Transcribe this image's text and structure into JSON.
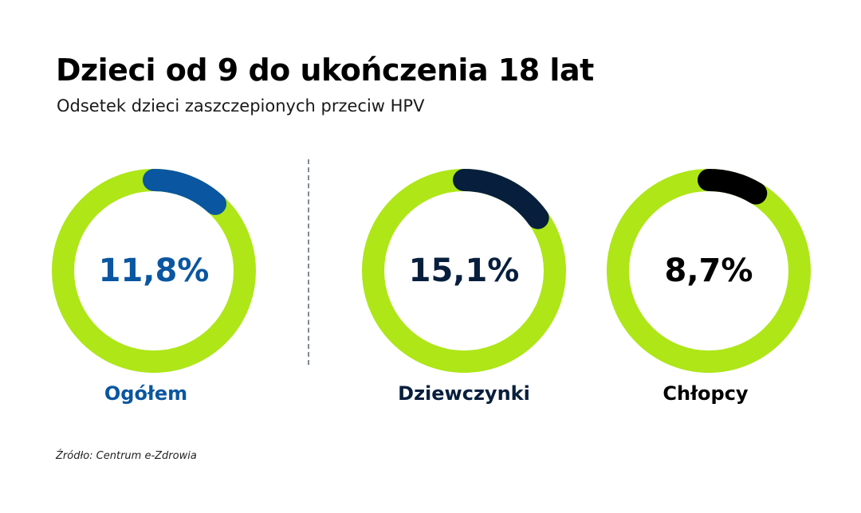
{
  "title": "Dzieci od 9 do ukończenia 18 lat",
  "subtitle": "Odsetek dzieci zaszczepionych przeciw HPV",
  "source": "Źródło: Centrum e-Zdrowia",
  "colors": {
    "ring": "#aee618",
    "total": "#0a56a0",
    "girls": "#071f3d",
    "boys": "#000000"
  },
  "chart_data": {
    "type": "pie",
    "title": "Dzieci od 9 do ukończenia 18 lat",
    "subtitle": "Odsetek dzieci zaszczepionych przeciw HPV",
    "categories": [
      "Ogółem",
      "Dziewczynki",
      "Chłopcy"
    ],
    "values": [
      11.8,
      15.1,
      8.7
    ],
    "value_labels": [
      "11,8%",
      "15,1%",
      "8,7%"
    ],
    "unit": "%",
    "max": 100
  }
}
